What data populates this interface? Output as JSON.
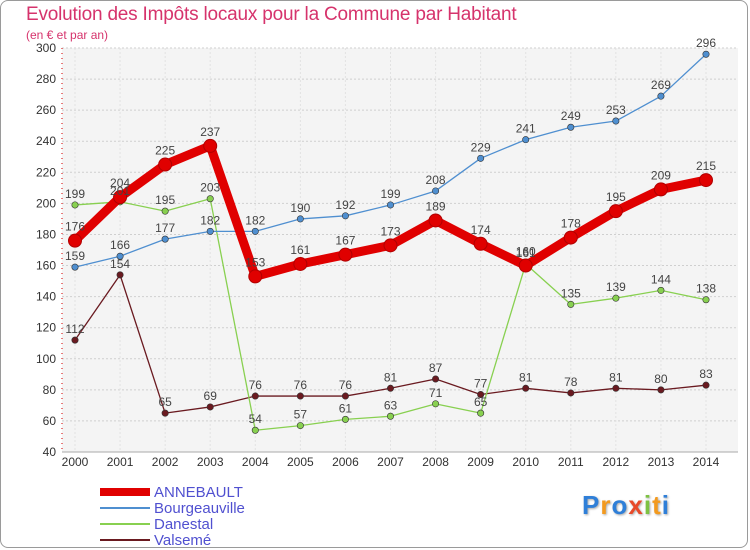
{
  "title": "Evolution des Impôts locaux pour la Commune par Habitant",
  "subtitle": "(en € et par an)",
  "chart_data": {
    "type": "line",
    "title": "Evolution des Impôts locaux pour la Commune par Habitant",
    "subtitle": "(en € et par an)",
    "xlabel": "",
    "ylabel": "",
    "categories": [
      "2000",
      "2001",
      "2002",
      "2003",
      "2004",
      "2005",
      "2006",
      "2007",
      "2008",
      "2009",
      "2010",
      "2011",
      "2012",
      "2013",
      "2014"
    ],
    "ylim": [
      40,
      300
    ],
    "yticks": [
      40,
      60,
      80,
      100,
      120,
      140,
      160,
      180,
      200,
      220,
      240,
      260,
      280,
      300
    ],
    "grid": true,
    "legend_position": "bottom-left",
    "series": [
      {
        "name": "ANNEBAULT",
        "color": "#e00000",
        "values": [
          176,
          204,
          225,
          237,
          153,
          161,
          167,
          173,
          189,
          174,
          160,
          178,
          195,
          209,
          215
        ]
      },
      {
        "name": "Bourgeauville",
        "color": "#4f8fd0",
        "values": [
          159,
          166,
          177,
          182,
          182,
          190,
          192,
          199,
          208,
          229,
          241,
          249,
          253,
          269,
          296
        ]
      },
      {
        "name": "Danestal",
        "color": "#88d050",
        "values": [
          199,
          201,
          195,
          203,
          54,
          57,
          61,
          63,
          71,
          65,
          161,
          135,
          139,
          144,
          138
        ]
      },
      {
        "name": "Valsemé",
        "color": "#6a1a20",
        "values": [
          112,
          154,
          65,
          69,
          76,
          76,
          76,
          81,
          87,
          77,
          81,
          78,
          81,
          80,
          83
        ]
      }
    ]
  },
  "legend": [
    {
      "label": "ANNEBAULT",
      "color": "#e00000"
    },
    {
      "label": "Bourgeauville",
      "color": "#4f8fd0"
    },
    {
      "label": "Danestal",
      "color": "#88d050"
    },
    {
      "label": "Valsemé",
      "color": "#6a1a20"
    }
  ],
  "logo": {
    "letters": [
      "P",
      "r",
      "o",
      "x",
      "i",
      "t",
      "i"
    ],
    "colors": [
      "#2f7fd8",
      "#f39a1e",
      "#2f7fd8",
      "#e84a2a",
      "#7dc242",
      "#f39a1e",
      "#2f7fd8"
    ]
  }
}
